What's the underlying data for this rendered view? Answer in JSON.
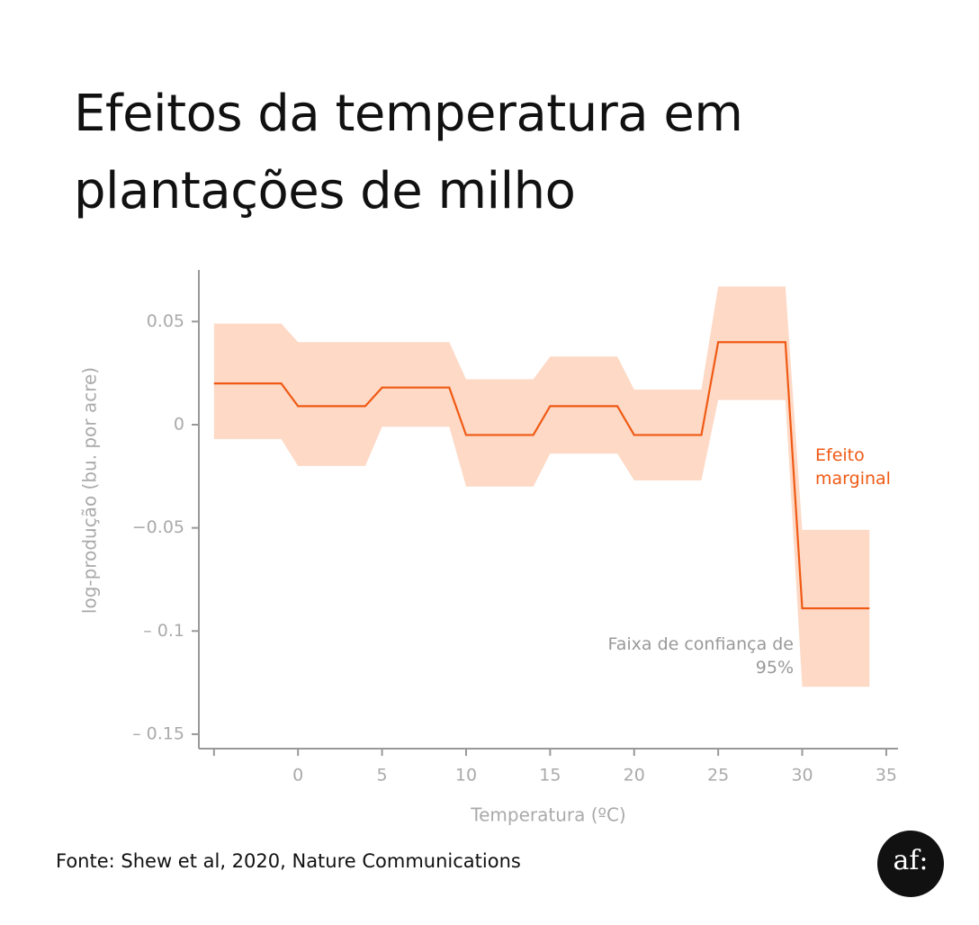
{
  "chart_data": {
    "type": "line",
    "title": "Efeitos da temperatura em plantações de milho",
    "x_label": "Temperatura (ºC)",
    "y_label": "log-produção (bu. por acre)",
    "source": "Fonte: Shew et al, 2020, Nature Communications",
    "logo": "af:",
    "x": [
      -5,
      -1,
      0,
      4,
      5,
      9,
      10,
      14,
      15,
      19,
      20,
      24,
      25,
      29,
      30,
      34
    ],
    "series": [
      {
        "name": "Efeito marginal",
        "color": "#f05a14",
        "values": [
          0.02,
          0.02,
          0.009,
          0.009,
          0.018,
          0.018,
          -0.005,
          -0.005,
          0.009,
          0.009,
          -0.005,
          -0.005,
          0.04,
          0.04,
          -0.089,
          -0.089
        ]
      }
    ],
    "band": {
      "name": "Faixa de confiança de 95%",
      "color": "#fdd9c6",
      "upper": [
        0.049,
        0.049,
        0.04,
        0.04,
        0.04,
        0.04,
        0.022,
        0.022,
        0.033,
        0.033,
        0.017,
        0.017,
        0.067,
        0.067,
        -0.051,
        -0.051
      ],
      "lower": [
        -0.007,
        -0.007,
        -0.02,
        -0.02,
        -0.001,
        -0.001,
        -0.03,
        -0.03,
        -0.014,
        -0.014,
        -0.027,
        -0.027,
        0.012,
        0.012,
        -0.127,
        -0.127
      ]
    },
    "xlim": [
      -5.9,
      35.7
    ],
    "ylim": [
      -0.157,
      0.075
    ],
    "xticks": [
      {
        "value": -5,
        "label": null
      },
      0,
      5,
      10,
      15,
      20,
      25,
      30,
      35
    ],
    "yticks": [
      {
        "value": 0.05,
        "label": "0.05"
      },
      0,
      {
        "value": -0.05,
        "label": "−0.05"
      },
      {
        "value": -0.1,
        "label": "– 0.1"
      },
      {
        "value": -0.15,
        "label": "– 0.15"
      }
    ],
    "grid": false
  }
}
